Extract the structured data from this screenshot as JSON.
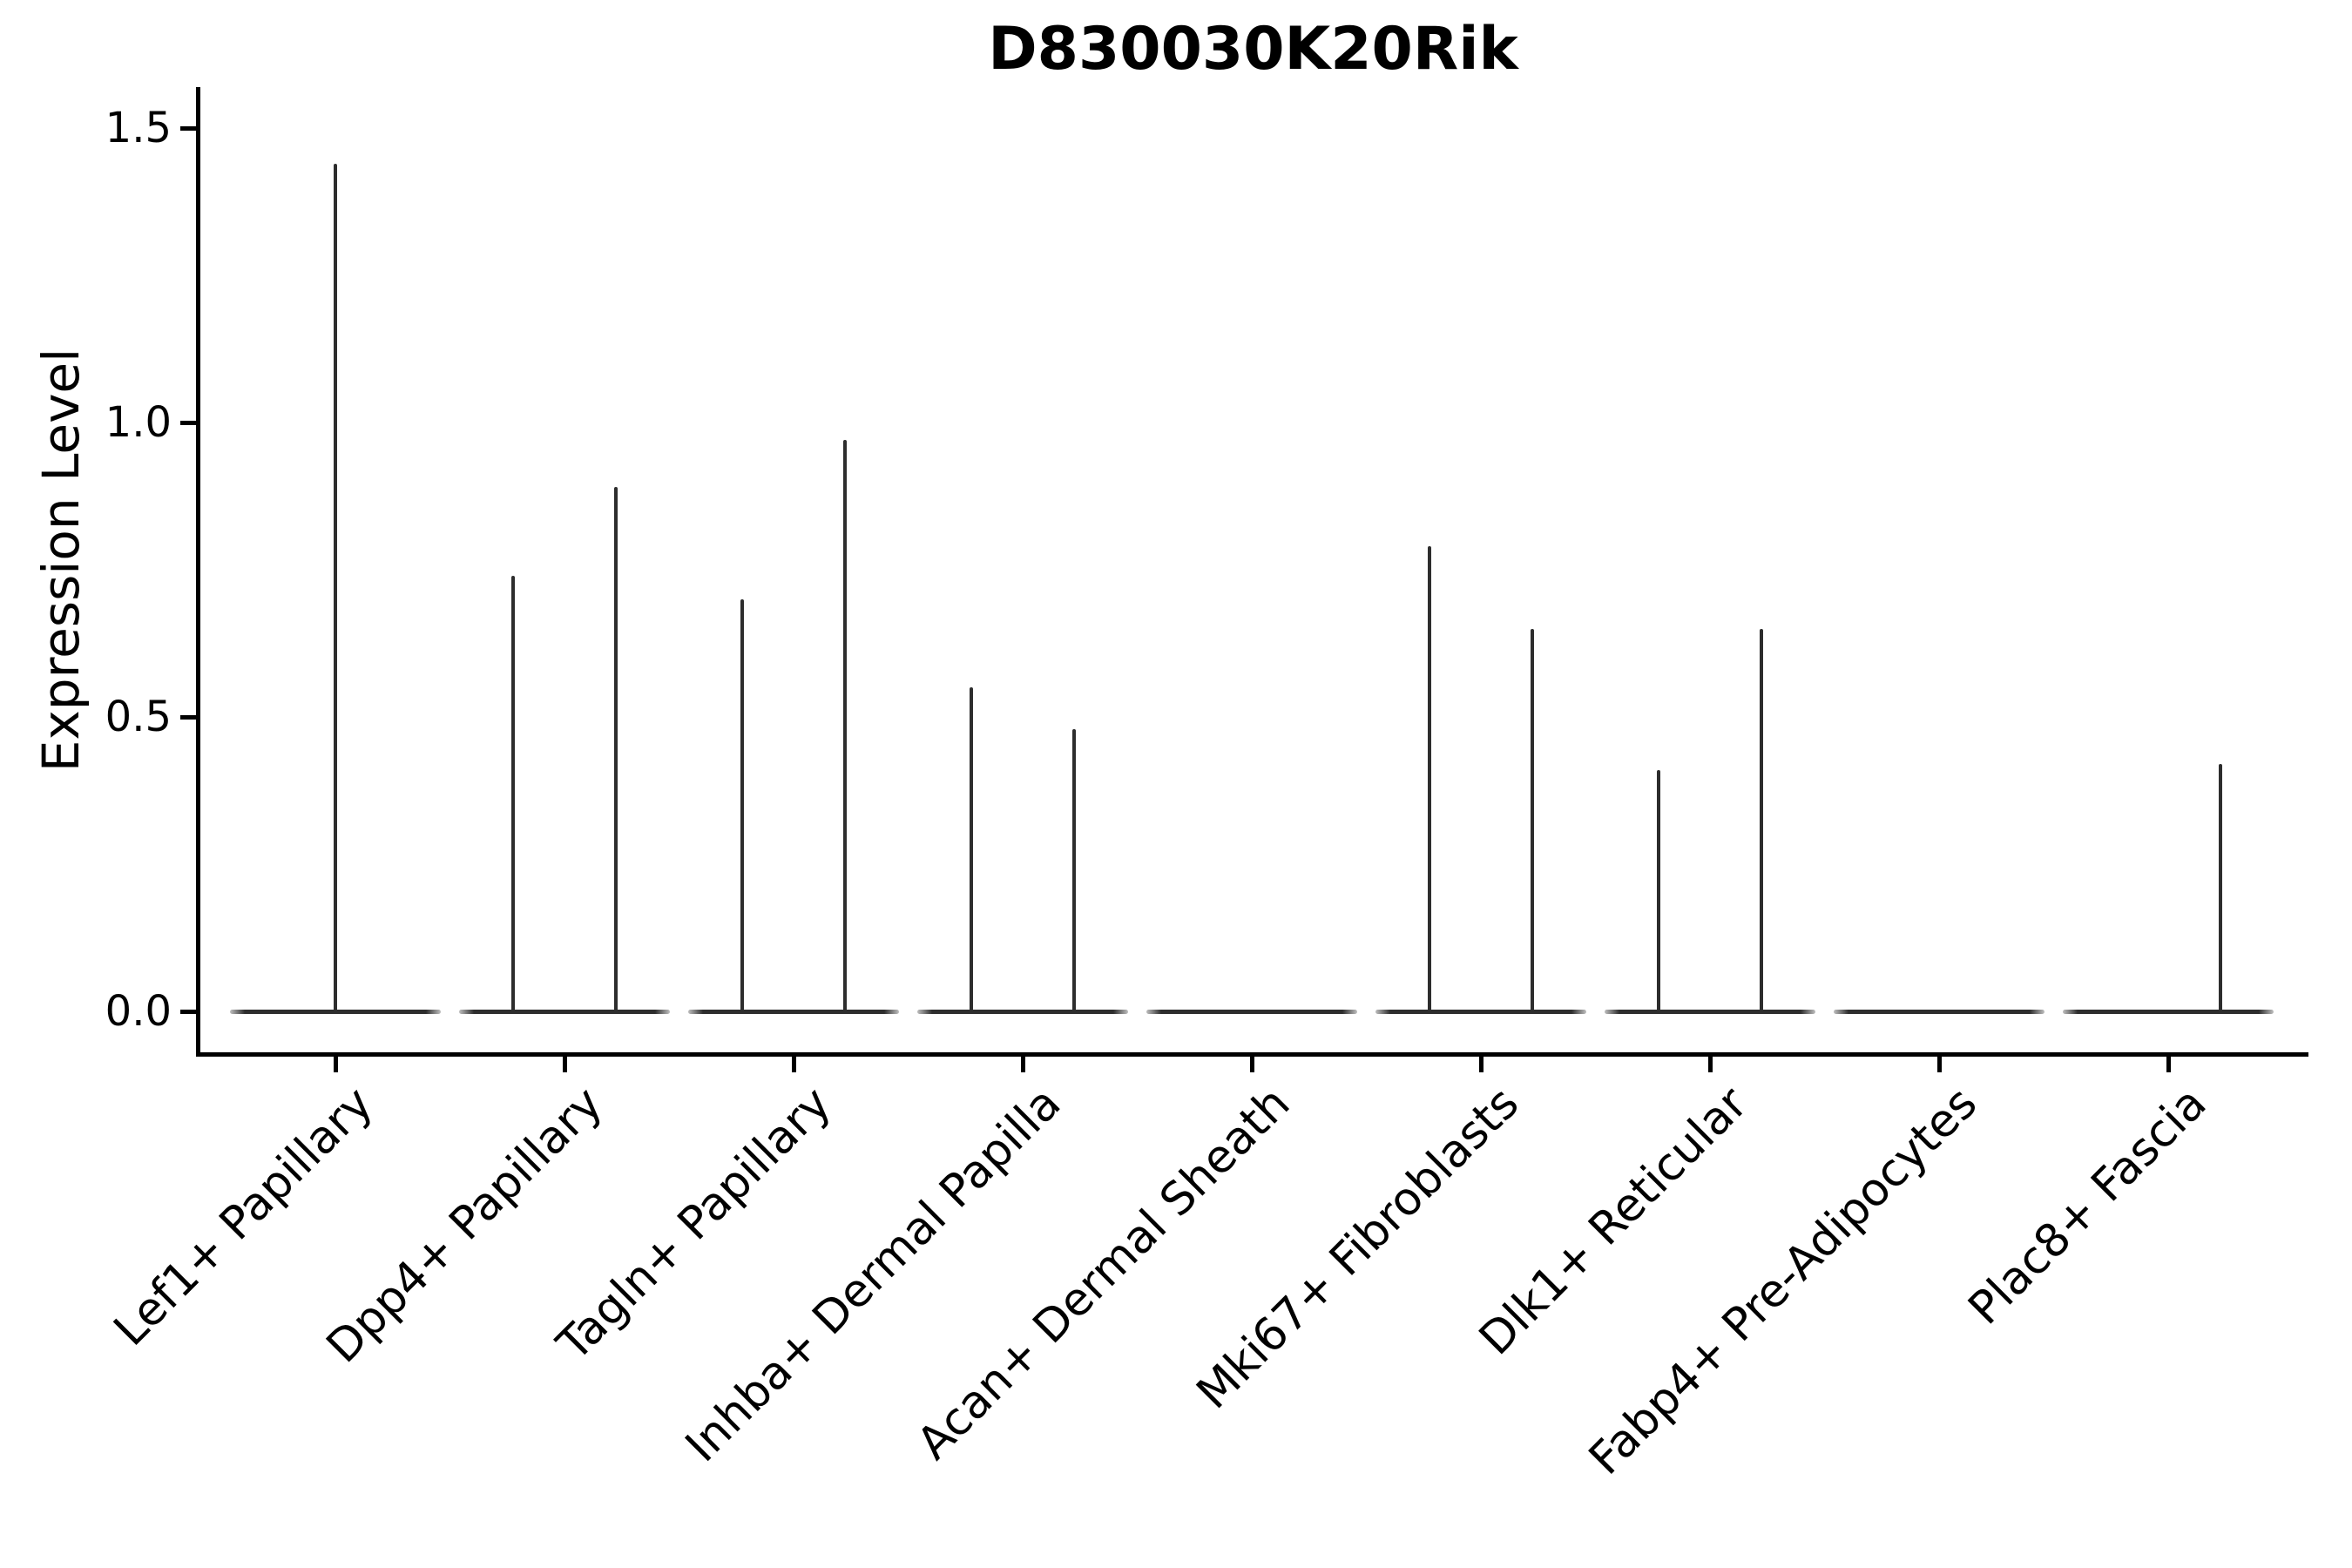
{
  "figure": {
    "background": "#ffffff"
  },
  "chart_data": {
    "type": "violin",
    "title": "D830030K20Rik",
    "ylabel": "Expression Level",
    "xlabel": "",
    "grid": false,
    "legend": null,
    "yticks": [
      0.0,
      0.5,
      1.0,
      1.5
    ],
    "ytick_labels": [
      "0.0",
      "0.5",
      "1.0",
      "1.5"
    ],
    "ylim": [
      -0.07,
      1.57
    ],
    "categories": [
      "Lef1+ Papillary",
      "Dpp4+ Papillary",
      "Tagln+ Papillary",
      "Inhba+ Dermal Papilla",
      "Acan+ Dermal Sheath",
      "Mki67+ Fibroblasts",
      "Dlk1+ Reticular",
      "Fabp4+ Pre-Adipocytes",
      "Plac8+ Fascia"
    ],
    "violins": [
      {
        "category": "Lef1+ Papillary",
        "baseline": 0.0,
        "spikes": [
          {
            "pos": 0.0,
            "max": 1.44
          }
        ]
      },
      {
        "category": "Dpp4+ Papillary",
        "baseline": 0.0,
        "spikes": [
          {
            "pos": -0.225,
            "max": 0.74
          },
          {
            "pos": 0.225,
            "max": 0.89
          }
        ]
      },
      {
        "category": "Tagln+ Papillary",
        "baseline": 0.0,
        "spikes": [
          {
            "pos": -0.225,
            "max": 0.7
          },
          {
            "pos": 0.225,
            "max": 0.97
          }
        ]
      },
      {
        "category": "Inhba+ Dermal Papilla",
        "baseline": 0.0,
        "spikes": [
          {
            "pos": -0.225,
            "max": 0.55
          },
          {
            "pos": 0.225,
            "max": 0.48
          }
        ]
      },
      {
        "category": "Acan+ Dermal Sheath",
        "baseline": 0.0,
        "spikes": []
      },
      {
        "category": "Mki67+ Fibroblasts",
        "baseline": 0.0,
        "spikes": [
          {
            "pos": -0.225,
            "max": 0.79
          },
          {
            "pos": 0.225,
            "max": 0.65
          }
        ]
      },
      {
        "category": "Dlk1+ Reticular",
        "baseline": 0.0,
        "spikes": [
          {
            "pos": -0.225,
            "max": 0.41
          },
          {
            "pos": 0.225,
            "max": 0.65
          }
        ]
      },
      {
        "category": "Fabp4+ Pre-Adipocytes",
        "baseline": 0.0,
        "spikes": []
      },
      {
        "category": "Plac8+ Fascia",
        "baseline": 0.0,
        "spikes": [
          {
            "pos": 0.228,
            "max": 0.42
          }
        ]
      }
    ],
    "colors": {
      "violin_line": "#2d2d2d",
      "axis": "#000000",
      "text": "#000000"
    }
  }
}
